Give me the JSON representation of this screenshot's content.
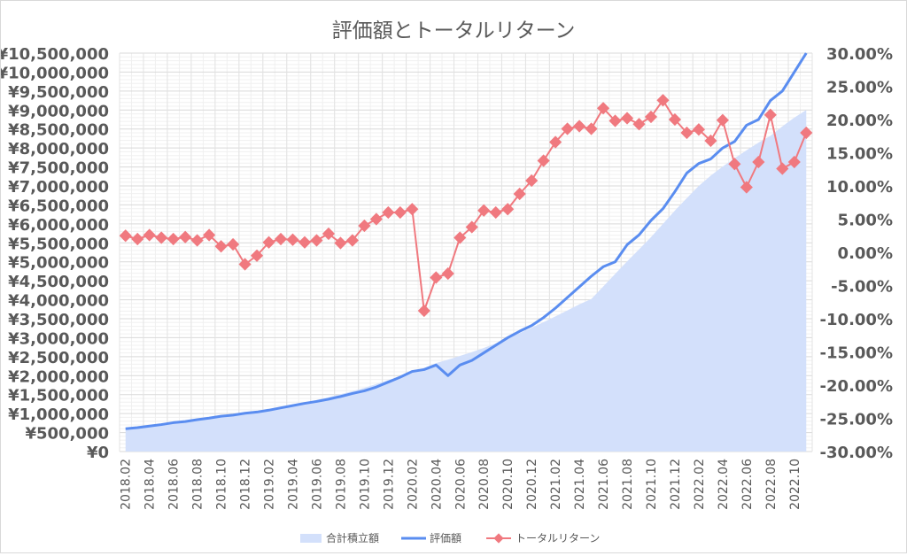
{
  "chart_data": {
    "type": "line",
    "title": "評価額とトータルリターン",
    "categories": [
      "2018.02",
      "2018.03",
      "2018.04",
      "2018.05",
      "2018.06",
      "2018.07",
      "2018.08",
      "2018.09",
      "2018.10",
      "2018.11",
      "2018.12",
      "2019.01",
      "2019.02",
      "2019.03",
      "2019.04",
      "2019.05",
      "2019.06",
      "2019.07",
      "2019.08",
      "2019.09",
      "2019.10",
      "2019.11",
      "2019.12",
      "2020.01",
      "2020.02",
      "2020.03",
      "2020.04",
      "2020.05",
      "2020.06",
      "2020.07",
      "2020.08",
      "2020.09",
      "2020.10",
      "2020.11",
      "2020.12",
      "2021.01",
      "2021.02",
      "2021.03",
      "2021.04",
      "2021.05",
      "2021.06",
      "2021.07",
      "2021.08",
      "2021.09",
      "2021.10",
      "2021.11",
      "2021.12",
      "2022.01",
      "2022.02",
      "2022.03",
      "2022.04",
      "2022.05",
      "2022.06",
      "2022.07",
      "2022.08",
      "2022.09",
      "2022.10",
      "2022.11"
    ],
    "tick_labels": [
      "2018.02",
      "2018.04",
      "2018.06",
      "2018.08",
      "2018.10",
      "2018.12",
      "2019.02",
      "2019.04",
      "2019.06",
      "2019.08",
      "2019.10",
      "2019.12",
      "2020.02",
      "2020.04",
      "2020.06",
      "2020.08",
      "2020.10",
      "2020.12",
      "2021.02",
      "2021.04",
      "2021.06",
      "2021.08",
      "2021.10",
      "2021.12",
      "2022.02",
      "2022.04",
      "2022.06",
      "2022.08",
      "2022.10"
    ],
    "y_left": {
      "min": 0,
      "max": 10500000,
      "step": 500000,
      "tick_labels": [
        "¥0",
        "¥500,000",
        "¥1,000,000",
        "¥1,500,000",
        "¥2,000,000",
        "¥2,500,000",
        "¥3,000,000",
        "¥3,500,000",
        "¥4,000,000",
        "¥4,500,000",
        "¥5,000,000",
        "¥5,500,000",
        "¥6,000,000",
        "¥6,500,000",
        "¥7,000,000",
        "¥7,500,000",
        "¥8,000,000",
        "¥8,500,000",
        "¥9,000,000",
        "¥9,500,000",
        "¥10,000,000",
        "¥10,500,000"
      ]
    },
    "y_right": {
      "min": -30,
      "max": 30,
      "step": 5,
      "tick_labels": [
        "-30.00%",
        "-25.00%",
        "-20.00%",
        "-15.00%",
        "-10.00%",
        "-5.00%",
        "0.00%",
        "5.00%",
        "10.00%",
        "15.00%",
        "20.00%",
        "25.00%",
        "30.00%"
      ]
    },
    "grid": true,
    "legend_position": "bottom",
    "series": [
      {
        "name": "合計積立額",
        "type": "area",
        "axis": "left",
        "color": "#d3e0fb",
        "values": [
          600000,
          630000,
          660000,
          700000,
          740000,
          780000,
          820000,
          860000,
          900000,
          940000,
          990000,
          1040000,
          1090000,
          1150000,
          1220000,
          1290000,
          1360000,
          1430000,
          1510000,
          1590000,
          1680000,
          1780000,
          1880000,
          1960000,
          2080000,
          2200000,
          2330000,
          2420000,
          2520000,
          2620000,
          2730000,
          2850000,
          2980000,
          3120000,
          3260000,
          3410000,
          3560000,
          3720000,
          3880000,
          4020000,
          4350000,
          4680000,
          5010000,
          5330000,
          5650000,
          6000000,
          6350000,
          6680000,
          7000000,
          7270000,
          7510000,
          7730000,
          7940000,
          8140000,
          8320000,
          8570000,
          8800000,
          9000000
        ]
      },
      {
        "name": "評価額",
        "type": "line",
        "axis": "left",
        "color": "#5a8df0",
        "values": [
          600000,
          630000,
          670000,
          710000,
          760000,
          790000,
          840000,
          880000,
          930000,
          960000,
          1010000,
          1040000,
          1090000,
          1150000,
          1210000,
          1270000,
          1320000,
          1380000,
          1450000,
          1530000,
          1600000,
          1700000,
          1830000,
          1960000,
          2110000,
          2160000,
          2280000,
          2000000,
          2280000,
          2400000,
          2600000,
          2800000,
          3000000,
          3170000,
          3320000,
          3530000,
          3780000,
          4060000,
          4340000,
          4620000,
          4870000,
          5000000,
          5450000,
          5710000,
          6090000,
          6400000,
          6850000,
          7340000,
          7590000,
          7710000,
          8000000,
          8170000,
          8600000,
          8750000,
          9250000,
          9500000,
          10000000,
          10500000
        ]
      },
      {
        "name": "トータルリターン",
        "type": "line-marker",
        "axis": "right",
        "color": "#f0797f",
        "values": [
          2.5,
          2.0,
          2.6,
          2.2,
          2.0,
          2.3,
          1.8,
          2.6,
          0.9,
          1.2,
          -1.8,
          -0.5,
          1.5,
          2.0,
          1.9,
          1.5,
          1.8,
          2.8,
          1.4,
          1.8,
          4.0,
          5.0,
          6.0,
          6.0,
          6.5,
          -8.8,
          -3.8,
          -3.2,
          2.2,
          3.8,
          6.3,
          6.0,
          6.5,
          8.8,
          10.8,
          13.8,
          16.6,
          18.6,
          19.0,
          18.6,
          21.7,
          19.8,
          20.2,
          19.3,
          20.4,
          22.9,
          20.0,
          18.0,
          18.5,
          16.8,
          19.9,
          13.3,
          9.8,
          13.6,
          20.7,
          12.6,
          13.6,
          18.0
        ]
      }
    ]
  }
}
